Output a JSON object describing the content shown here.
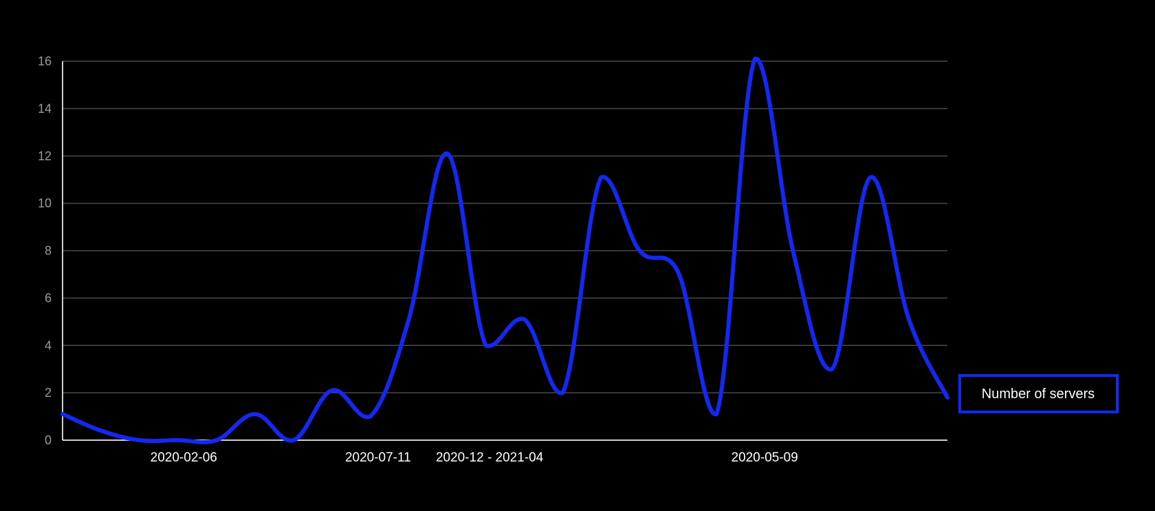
{
  "colors": {
    "background": "#000000",
    "series": "#1428f0",
    "grid": "#4a4a4a",
    "axis": "#d0d0d0",
    "y_tick_text": "#9a9a9a",
    "x_tick_text": "#ffffff"
  },
  "chart_data": {
    "type": "line",
    "y_ticks": [
      "0",
      "2",
      "4",
      "6",
      "8",
      "10",
      "12",
      "14",
      "16"
    ],
    "x_tick_labels": [
      {
        "label": "2020-02-06",
        "index": 3.15
      },
      {
        "label": "2020-07-11",
        "index": 8.2
      },
      {
        "label": "2020-12 - 2021-04",
        "index": 11.1
      },
      {
        "label": "2020-05-09",
        "index": 18.25
      }
    ],
    "ylim": [
      0,
      16
    ],
    "grid": true,
    "legend": {
      "position": "right",
      "label": "Number of servers"
    },
    "series": [
      {
        "name": "Number of servers",
        "values": [
          1.1,
          0.4,
          0,
          0,
          0,
          1.1,
          0,
          2.1,
          1,
          5.1,
          12.1,
          4,
          5.1,
          2,
          11.1,
          8,
          7.1,
          1.1,
          16.1,
          7.9,
          3,
          11.1,
          5.1,
          1.8
        ]
      }
    ]
  }
}
